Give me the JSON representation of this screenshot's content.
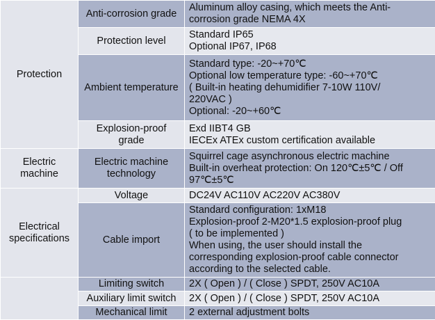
{
  "rows": {
    "anticorrosion": {
      "label": "Anti-corrosion grade",
      "lines": [
        "Aluminum alloy casing, which meets the Anti-",
        "corrosion grade NEMA 4X"
      ]
    },
    "protection_level": {
      "label": "Protection level",
      "lines": [
        "Standard IP65",
        "Optional IP67, IP68"
      ]
    },
    "ambient": {
      "label": "Ambient temperature",
      "lines": [
        "Standard type: -20~+70℃",
        "Optional low temperature type: -60~+70℃",
        "( Built-in heating dehumidifier 7-10W 110V/",
        "220VAC )",
        "Optional: -20~+60℃"
      ]
    },
    "explosion": {
      "label_lines": [
        "Explosion-proof",
        "grade"
      ],
      "lines": [
        "Exd IIBT4 GB",
        "IECEx ATEx custom certification available"
      ]
    },
    "motor_tech": {
      "label_lines": [
        "Electric machine",
        "technology"
      ],
      "lines": [
        "Squirrel cage asynchronous electric machine",
        "Built-in overheat protection: On 120℃±5℃ / Off",
        "97℃±5℃"
      ]
    },
    "voltage": {
      "label": "Voltage",
      "lines": [
        "DC24V AC110V AC220V AC380V"
      ]
    },
    "cable": {
      "label": "Cable import",
      "lines": [
        "Standard configuration: 1xM18",
        "Explosion-proof 2-M20*1.5 explosion-proof plug",
        "( to be implemented )",
        "When using, the user should install the",
        "corresponding explosion-proof cable connector",
        "according to the selected cable."
      ]
    },
    "limiting": {
      "label": "Limiting switch",
      "lines": [
        "2X ( Open ) / ( Close ) SPDT, 250V AC10A"
      ]
    },
    "aux_limit": {
      "label": "Auxiliary limit switch",
      "lines": [
        "2X ( Open ) / ( Close ) SPDT, 250V AC10A"
      ]
    },
    "mech_limit": {
      "label": "Mechanical limit",
      "lines": [
        "2 external adjustment bolts"
      ]
    }
  },
  "groups": {
    "protection": "Protection",
    "electric_machine": [
      "Electric",
      "machine"
    ],
    "electrical_specs": [
      "Electrical",
      "specifications"
    ],
    "blank": ""
  }
}
